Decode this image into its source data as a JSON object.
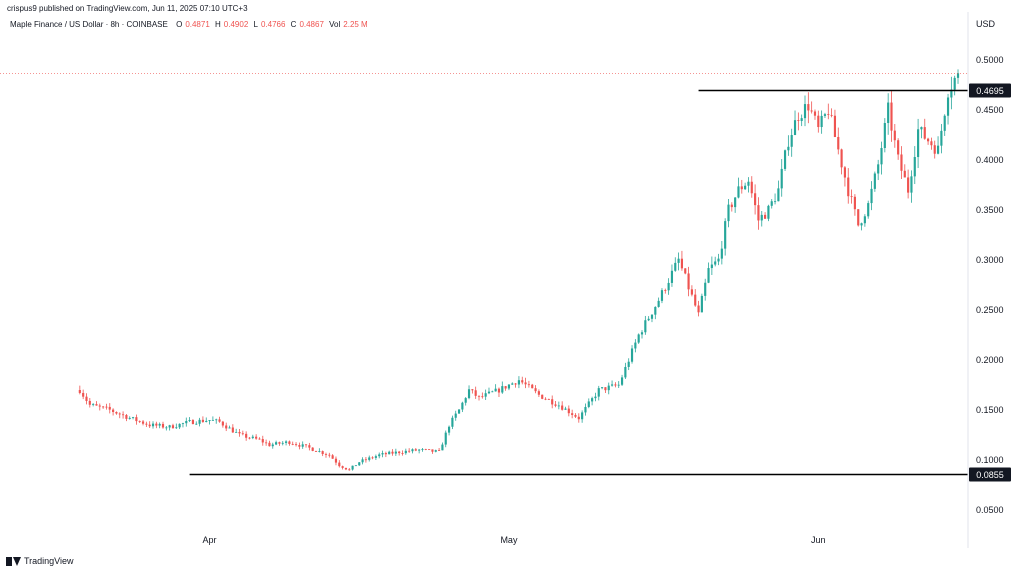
{
  "header": {
    "caption": "crispus9 published on TradingView.com, Jun 11, 2025 07:10 UTC+3"
  },
  "legend": {
    "title": "Maple Finance / US Dollar · 8h · COINBASE",
    "o_label": "O",
    "o_value": "0.4871",
    "h_label": "H",
    "h_value": "0.4902",
    "l_label": "L",
    "l_value": "0.4766",
    "c_label": "C",
    "c_value": "0.4867",
    "vol_label": "Vol",
    "vol_value": "2.25 M"
  },
  "footer": {
    "brand": "TradingView"
  },
  "colors": {
    "up": "#26a69a",
    "down": "#ef5350",
    "level": "#000000",
    "last_price_line": "#ef5350"
  },
  "chart_data": {
    "type": "candlestick",
    "currency_label": "USD",
    "y_ticks": [
      "0.5000",
      "0.4500",
      "0.4000",
      "0.3500",
      "0.3000",
      "0.2500",
      "0.2000",
      "0.1500",
      "0.1000",
      "0.0500"
    ],
    "ylim": [
      0.03,
      0.53
    ],
    "x_ticks": [
      {
        "label": "Apr",
        "date": "2025-04-01"
      },
      {
        "label": "May",
        "date": "2025-05-01"
      },
      {
        "label": "Jun",
        "date": "2025-06-01"
      }
    ],
    "xlim": [
      "2025-03-11",
      "2025-06-16"
    ],
    "horizontal_levels": [
      {
        "label": "0.4695",
        "value": 0.4695,
        "from_date": "2025-05-20"
      },
      {
        "label": "0.0855",
        "value": 0.0855,
        "from_date": "2025-03-30"
      }
    ],
    "last_price": 0.4867,
    "close_path": [
      [
        "2025-03-19",
        0.17
      ],
      [
        "2025-03-20",
        0.155
      ],
      [
        "2025-03-22",
        0.15
      ],
      [
        "2025-03-24",
        0.142
      ],
      [
        "2025-03-26",
        0.135
      ],
      [
        "2025-03-28",
        0.133
      ],
      [
        "2025-03-30",
        0.138
      ],
      [
        "2025-04-01",
        0.14
      ],
      [
        "2025-04-02",
        0.138
      ],
      [
        "2025-04-04",
        0.125
      ],
      [
        "2025-04-06",
        0.12
      ],
      [
        "2025-04-07",
        0.115
      ],
      [
        "2025-04-09",
        0.118
      ],
      [
        "2025-04-11",
        0.112
      ],
      [
        "2025-04-13",
        0.105
      ],
      [
        "2025-04-14",
        0.095
      ],
      [
        "2025-04-15",
        0.09
      ],
      [
        "2025-04-16",
        0.098
      ],
      [
        "2025-04-18",
        0.105
      ],
      [
        "2025-04-20",
        0.108
      ],
      [
        "2025-04-22",
        0.11
      ],
      [
        "2025-04-24",
        0.108
      ],
      [
        "2025-04-25",
        0.135
      ],
      [
        "2025-04-26",
        0.15
      ],
      [
        "2025-04-27",
        0.17
      ],
      [
        "2025-04-28",
        0.162
      ],
      [
        "2025-04-30",
        0.17
      ],
      [
        "2025-05-02",
        0.18
      ],
      [
        "2025-05-04",
        0.165
      ],
      [
        "2025-05-06",
        0.155
      ],
      [
        "2025-05-08",
        0.142
      ],
      [
        "2025-05-10",
        0.17
      ],
      [
        "2025-05-12",
        0.175
      ],
      [
        "2025-05-14",
        0.225
      ],
      [
        "2025-05-16",
        0.26
      ],
      [
        "2025-05-18",
        0.3
      ],
      [
        "2025-05-20",
        0.245
      ],
      [
        "2025-05-21",
        0.29
      ],
      [
        "2025-05-22",
        0.3
      ],
      [
        "2025-05-23",
        0.35
      ],
      [
        "2025-05-24",
        0.37
      ],
      [
        "2025-05-25",
        0.38
      ],
      [
        "2025-05-26",
        0.34
      ],
      [
        "2025-05-27",
        0.35
      ],
      [
        "2025-05-28",
        0.37
      ],
      [
        "2025-05-29",
        0.42
      ],
      [
        "2025-05-30",
        0.445
      ],
      [
        "2025-05-31",
        0.455
      ],
      [
        "2025-06-01",
        0.43
      ],
      [
        "2025-06-02",
        0.45
      ],
      [
        "2025-06-03",
        0.41
      ],
      [
        "2025-06-04",
        0.37
      ],
      [
        "2025-06-05",
        0.335
      ],
      [
        "2025-06-06",
        0.355
      ],
      [
        "2025-06-07",
        0.395
      ],
      [
        "2025-06-08",
        0.45
      ],
      [
        "2025-06-09",
        0.4
      ],
      [
        "2025-06-10",
        0.37
      ],
      [
        "2025-06-11",
        0.43
      ],
      [
        "2025-06-12",
        0.42
      ],
      [
        "2025-06-13",
        0.41
      ],
      [
        "2025-06-14",
        0.47
      ],
      [
        "2025-06-15",
        0.4867
      ]
    ]
  }
}
